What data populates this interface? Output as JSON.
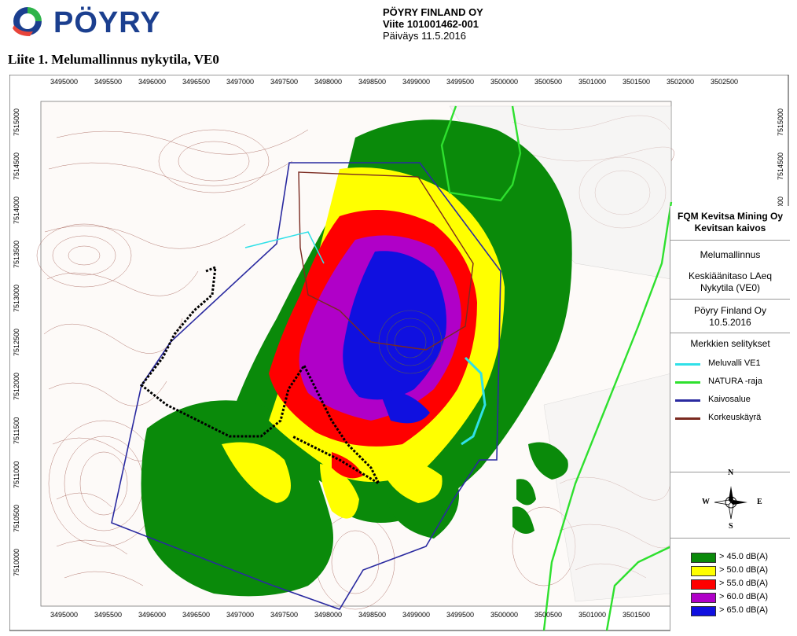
{
  "header": {
    "logo_text": "PÖYRY",
    "company_name": "PÖYRY FINLAND OY",
    "reference": "Viite 101001462-001",
    "date_line": "Päiväys 11.5.2016",
    "page_title": "Liite 1. Melumallinnus nykytila, VE0"
  },
  "map": {
    "x_ticks": [
      "3495000",
      "3495500",
      "3496000",
      "3496500",
      "3497000",
      "3497500",
      "3498000",
      "3498500",
      "3499000",
      "3499500",
      "3500000",
      "3500500",
      "3501000",
      "3501500",
      "3502000",
      "3502500"
    ],
    "y_ticks": [
      "7515000",
      "7514500",
      "7514000",
      "7513500",
      "7513000",
      "7512500",
      "7512000",
      "7511500",
      "7511000",
      "7510500",
      "7510000"
    ],
    "colors": {
      "contour": "#8a4a40",
      "db45": "#0a8a0a",
      "db50": "#ffff00",
      "db55": "#ff0000",
      "db60": "#b000c8",
      "db65": "#1010e0",
      "natura": "#2ee02e",
      "kaivosalue": "#2a2aa0",
      "korkeuskayra": "#7a2a20",
      "meluvalli": "#30e0e8"
    }
  },
  "legend": {
    "client": "FQM Kevitsa Mining Oy",
    "site": "Kevitsan kaivos",
    "study": "Melumallinnus",
    "description_1": "Keskiäänitaso LAeq",
    "description_2": "Nykytila (VE0)",
    "author": "Pöyry Finland Oy",
    "author_date": "10.5.2016",
    "symbols_title": "Merkkien selitykset",
    "lines": [
      {
        "label": "Meluvalli VE1",
        "color": "#30e0e8"
      },
      {
        "label": "NATURA -raja",
        "color": "#2ee02e"
      },
      {
        "label": "Kaivosalue",
        "color": "#2a2aa0"
      },
      {
        "label": "Korkeuskäyrä",
        "color": "#7a2a20"
      }
    ],
    "compass": {
      "n": "N",
      "s": "S",
      "e": "E",
      "w": "W"
    },
    "noise_classes": [
      {
        "label": "> 45.0 dB(A)",
        "color": "#0a8a0a"
      },
      {
        "label": "> 50.0 dB(A)",
        "color": "#ffff00"
      },
      {
        "label": "> 55.0 dB(A)",
        "color": "#ff0000"
      },
      {
        "label": "> 60.0 dB(A)",
        "color": "#b000c8"
      },
      {
        "label": "> 65.0 dB(A)",
        "color": "#1010e0"
      }
    ]
  }
}
